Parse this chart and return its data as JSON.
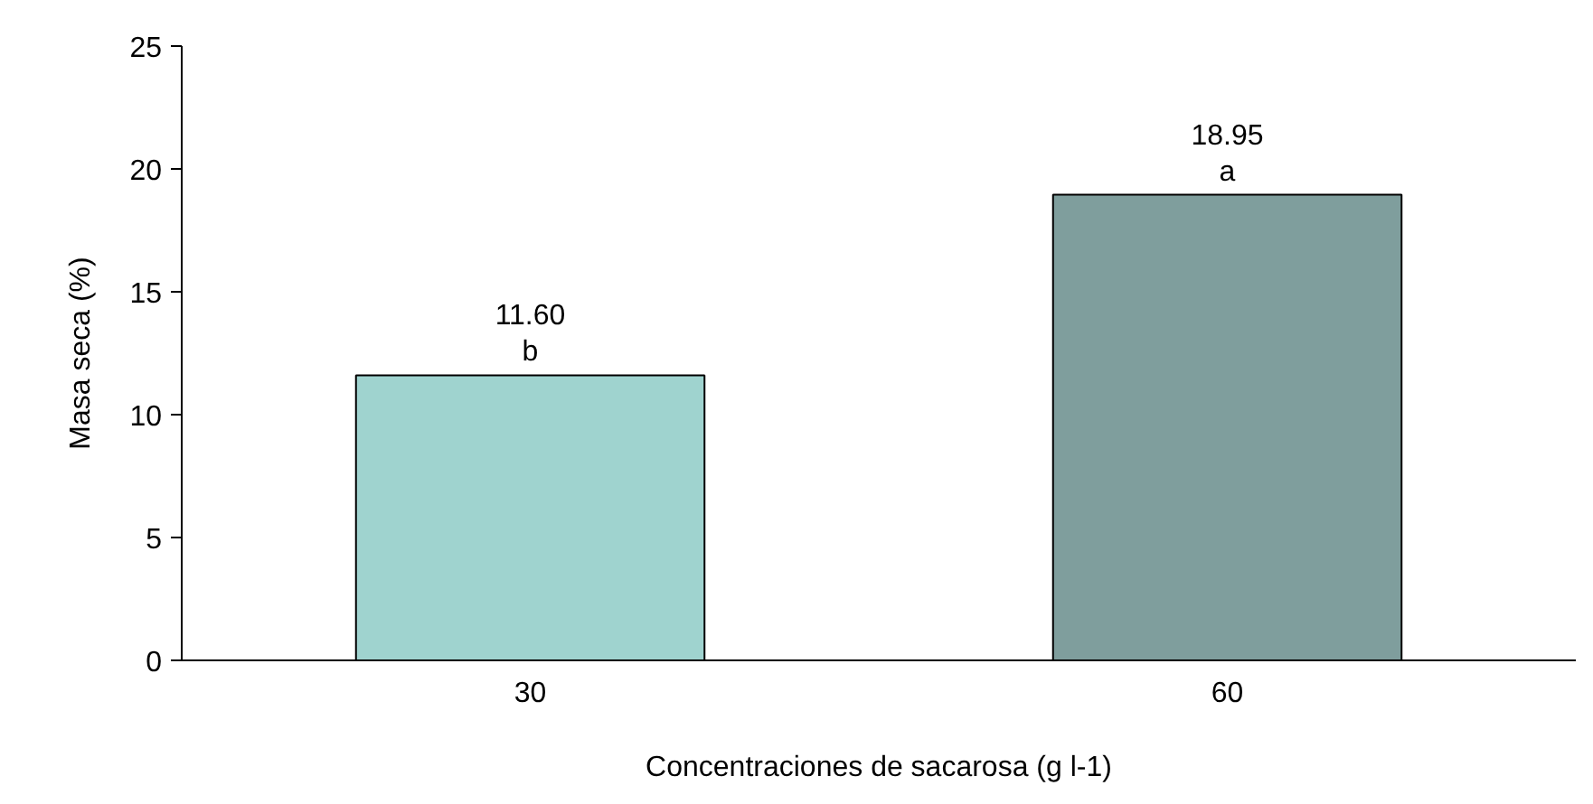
{
  "chart_data": {
    "type": "bar",
    "xlabel": "Concentraciones de sacarosa (g l-1)",
    "ylabel": "Masa seca (%)",
    "categories": [
      "30",
      "60"
    ],
    "values": [
      11.6,
      18.95
    ],
    "value_labels": [
      "11.60",
      "18.95"
    ],
    "colors": [
      "#9fd3cf",
      "#7f9e9d"
    ],
    "annotations": [
      {
        "text": "b",
        "x": "30",
        "y": 11.6
      },
      {
        "text": "a",
        "x": "60",
        "y": 18.95
      }
    ],
    "ylim": [
      0,
      25
    ],
    "yticks": [
      0,
      5,
      10,
      15,
      20,
      25
    ],
    "grid": false
  }
}
